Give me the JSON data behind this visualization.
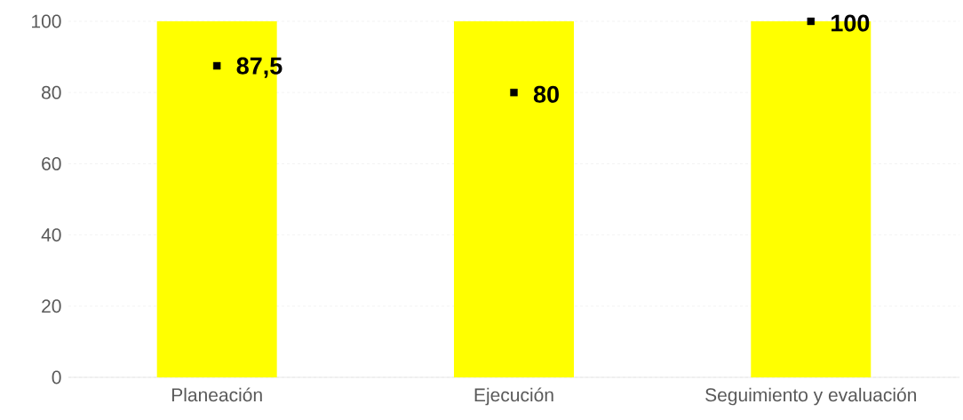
{
  "chart_data": {
    "type": "bar",
    "categories": [
      "Planeación",
      "Ejecución",
      "Seguimiento y evaluación"
    ],
    "series": [
      {
        "color": "#ffff00",
        "values": [
          100,
          100,
          100
        ]
      },
      {
        "type": "scatter",
        "color": "#000000",
        "values": [
          87.5,
          80,
          100
        ],
        "value_labels": [
          "87,5",
          "80",
          "100"
        ]
      }
    ],
    "ylim": [
      0,
      100
    ],
    "yticks": [
      0,
      20,
      40,
      60,
      80,
      100
    ],
    "grid": "y",
    "marker": "square"
  }
}
